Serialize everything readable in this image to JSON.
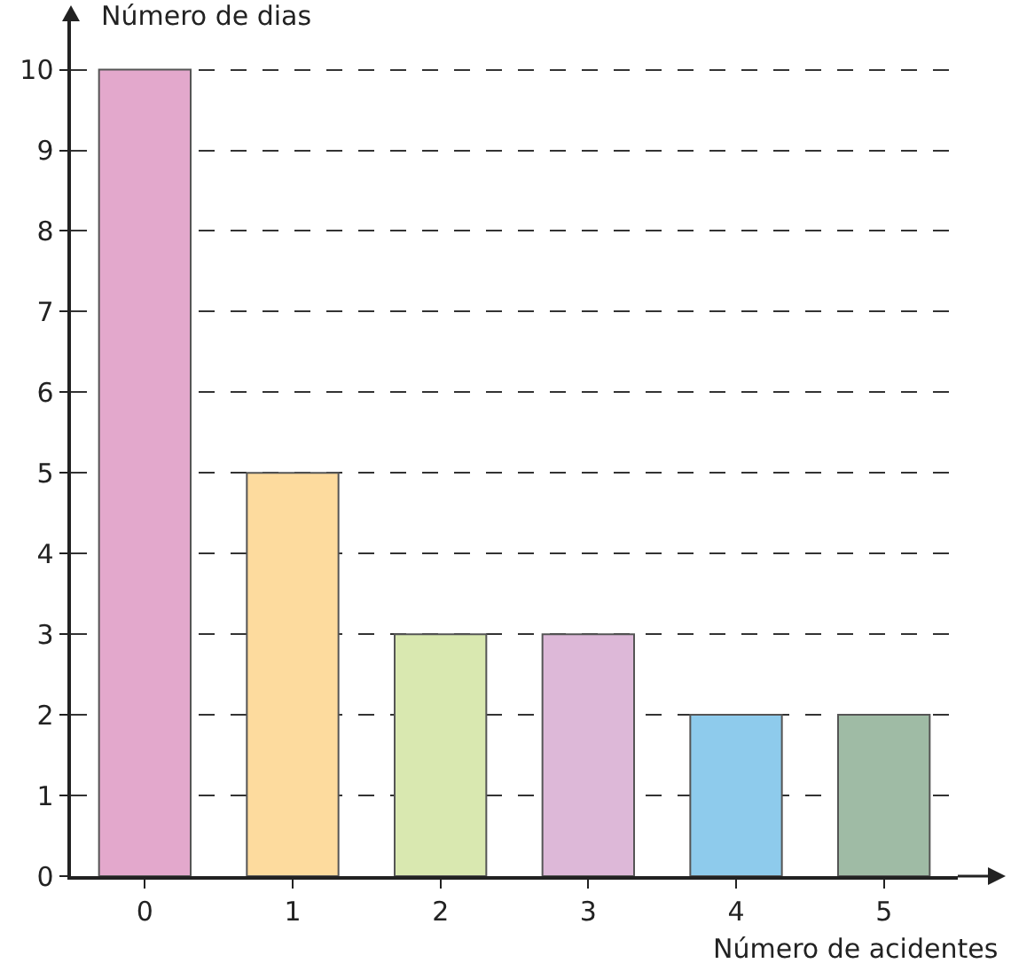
{
  "chart_data": {
    "type": "bar",
    "xlabel": "Número de acidentes",
    "ylabel": "Número de dias",
    "categories": [
      "0",
      "1",
      "2",
      "3",
      "4",
      "5"
    ],
    "values": [
      10,
      5,
      3,
      3,
      2,
      2
    ],
    "colors": [
      "#e3a8cc",
      "#fddb9e",
      "#d9e8b0",
      "#ddb8d8",
      "#8ecbec",
      "#9fbba5"
    ],
    "ylim": [
      0,
      10.6
    ],
    "yticks": [
      0,
      1,
      2,
      3,
      4,
      5,
      6,
      7,
      8,
      9,
      10
    ],
    "grid": "y"
  }
}
